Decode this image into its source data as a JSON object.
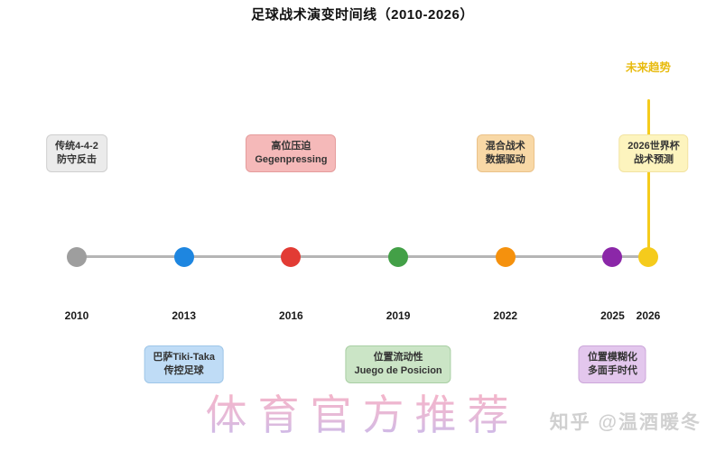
{
  "title": "足球战术演变时间线（2010-2026）",
  "watermark": "体育官方推荐",
  "credit": "知乎 @温酒暖冬",
  "colors": {
    "title_text": "#111111",
    "timeline_line": "#b5b5b5",
    "future_line": "#F5CB1C",
    "future_label_text": "#E8BB0F",
    "watermark_top": "#F89FB4",
    "watermark_mid": "#E2A9CE",
    "watermark_bottom": "#B7A8E9",
    "credit_text": "#d0d0d0"
  },
  "chart_data": {
    "type": "timeline",
    "title": "足球战术演变时间线（2010-2026）",
    "x_range": [
      2010,
      2026
    ],
    "axis_years": [
      "2010",
      "2013",
      "2016",
      "2019",
      "2022",
      "2025",
      "2026"
    ],
    "legend_position": "none",
    "grid": false,
    "events": [
      {
        "year": 2010,
        "dot_color": "#9E9E9E",
        "side": "above",
        "lines": [
          "传统4-4-2",
          "防守反击"
        ],
        "box_bg": "#EBEBEB",
        "box_border": "#CFCFCF"
      },
      {
        "year": 2013,
        "dot_color": "#1E86E0",
        "side": "below",
        "lines": [
          "巴萨Tiki-Taka",
          "传控足球"
        ],
        "box_bg": "#BFDCF6",
        "box_border": "#9EC6E8"
      },
      {
        "year": 2016,
        "dot_color": "#E23B34",
        "side": "above",
        "lines": [
          "高位压迫",
          "Gegenpressing"
        ],
        "box_bg": "#F5B9B9",
        "box_border": "#E59C9C"
      },
      {
        "year": 2019,
        "dot_color": "#43A047",
        "side": "below",
        "lines": [
          "位置流动性",
          "Juego de Posicion"
        ],
        "box_bg": "#CBE5C6",
        "box_border": "#A9CFA4"
      },
      {
        "year": 2022,
        "dot_color": "#F5910D",
        "side": "above",
        "lines": [
          "混合战术",
          "数据驱动"
        ],
        "box_bg": "#F8D8A6",
        "box_border": "#EBC289"
      },
      {
        "year": 2025,
        "dot_color": "#8B27A8",
        "side": "below",
        "lines": [
          "位置模糊化",
          "多面手时代"
        ],
        "box_bg": "#E3C7ED",
        "box_border": "#CCA7DA"
      },
      {
        "year": 2026,
        "dot_color": "#F5CB1C",
        "side": "above",
        "lines": [
          "2026世界杯",
          "战术预测"
        ],
        "box_bg": "#FDF4BE",
        "box_border": "#F2E3A1",
        "box_dx": 6
      }
    ],
    "future_marker": {
      "label": "未来趋势",
      "year": 2026,
      "color": "#F5CB1C"
    }
  }
}
